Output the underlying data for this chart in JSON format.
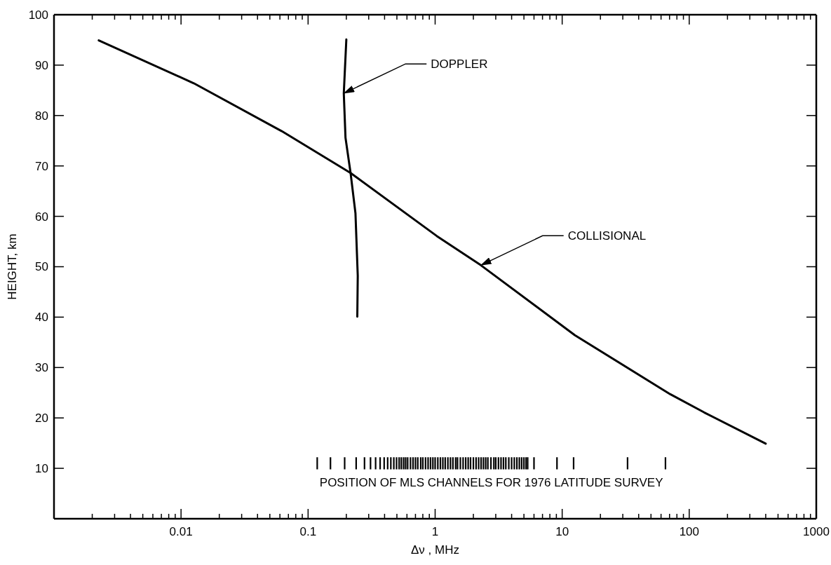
{
  "chart_data": {
    "type": "line",
    "xlabel": "Δν , MHz",
    "ylabel": "HEIGHT, km",
    "log": "x",
    "xlim": [
      0.001,
      1000
    ],
    "ylim": [
      0,
      100
    ],
    "xticks": [
      {
        "value": 0.002,
        "label": null
      },
      {
        "value": 0.003,
        "label": null
      },
      {
        "value": 0.004,
        "label": null
      },
      {
        "value": 0.005,
        "label": null
      },
      {
        "value": 0.006,
        "label": null
      },
      {
        "value": 0.007,
        "label": null
      },
      {
        "value": 0.008,
        "label": null
      },
      {
        "value": 0.009,
        "label": null
      },
      0.01,
      {
        "value": 0.02,
        "label": null
      },
      {
        "value": 0.03,
        "label": null
      },
      {
        "value": 0.04,
        "label": null
      },
      {
        "value": 0.05,
        "label": null
      },
      {
        "value": 0.06,
        "label": null
      },
      {
        "value": 0.07,
        "label": null
      },
      {
        "value": 0.08,
        "label": null
      },
      {
        "value": 0.09,
        "label": null
      },
      0.1,
      {
        "value": 0.2,
        "label": null
      },
      {
        "value": 0.3,
        "label": null
      },
      {
        "value": 0.4,
        "label": null
      },
      {
        "value": 0.5,
        "label": null
      },
      {
        "value": 0.6,
        "label": null
      },
      {
        "value": 0.7,
        "label": null
      },
      {
        "value": 0.8,
        "label": null
      },
      {
        "value": 0.9,
        "label": null
      },
      1,
      {
        "value": 2,
        "label": null
      },
      {
        "value": 3,
        "label": null
      },
      {
        "value": 4,
        "label": null
      },
      {
        "value": 5,
        "label": null
      },
      {
        "value": 6,
        "label": null
      },
      {
        "value": 7,
        "label": null
      },
      {
        "value": 8,
        "label": null
      },
      {
        "value": 9,
        "label": null
      },
      10,
      {
        "value": 20,
        "label": null
      },
      {
        "value": 30,
        "label": null
      },
      {
        "value": 40,
        "label": null
      },
      {
        "value": 50,
        "label": null
      },
      {
        "value": 60,
        "label": null
      },
      {
        "value": 70,
        "label": null
      },
      {
        "value": 80,
        "label": null
      },
      {
        "value": 90,
        "label": null
      },
      100,
      {
        "value": 200,
        "label": null
      },
      {
        "value": 300,
        "label": null
      },
      {
        "value": 400,
        "label": null
      },
      {
        "value": 500,
        "label": null
      },
      {
        "value": 600,
        "label": null
      },
      {
        "value": 700,
        "label": null
      },
      {
        "value": 800,
        "label": null
      },
      {
        "value": 900,
        "label": null
      },
      1000
    ],
    "yticks": [
      10,
      20,
      30,
      40,
      50,
      60,
      70,
      80,
      90,
      100
    ],
    "series": [
      {
        "color": "#000000",
        "x": [
          0.00225,
          0.0126,
          0.062,
          0.216,
          1.03,
          2.29,
          12.6,
          71,
          131,
          400
        ],
        "values": [
          94.9,
          86.4,
          76.9,
          68.6,
          56.1,
          50.3,
          36.4,
          24.7,
          21.1,
          14.9
        ]
      },
      {
        "color": "#000000",
        "x": [
          0.2,
          0.191,
          0.197,
          0.216,
          0.236,
          0.246,
          0.244
        ],
        "values": [
          95.1,
          84.4,
          75.6,
          68.6,
          60.6,
          48.2,
          40.1
        ]
      },
      {
        "type": "bar",
        "color": "#000000",
        "base": [
          9.8,
          9.8,
          9.8,
          9.8,
          9.8,
          9.8,
          9.8,
          9.8,
          9.8,
          9.8,
          9.8,
          9.8,
          9.8,
          9.8,
          9.8,
          9.8,
          9.8,
          9.8,
          9.8,
          9.8,
          9.8,
          9.8,
          9.8,
          9.8,
          9.8,
          9.8,
          9.8,
          9.8,
          9.8,
          9.8,
          9.8,
          9.8,
          9.8,
          9.8,
          9.8,
          9.8,
          9.8,
          9.8,
          9.8,
          9.8,
          9.8,
          9.8,
          9.8,
          9.8,
          9.8,
          9.8,
          9.8,
          9.8,
          9.8,
          9.8,
          9.8,
          9.8,
          9.8,
          9.8,
          9.8,
          9.8,
          9.8,
          9.8,
          9.8,
          9.8,
          9.8,
          9.8,
          9.8,
          9.8,
          9.8,
          9.8,
          9.8,
          9.8,
          9.8,
          9.8,
          9.8
        ],
        "x": [
          0.118,
          0.15,
          0.194,
          0.239,
          0.278,
          0.31,
          0.34,
          0.369,
          0.397,
          0.423,
          0.448,
          0.473,
          0.497,
          0.521,
          0.542,
          0.565,
          0.586,
          0.608,
          0.64,
          0.67,
          0.7,
          0.73,
          0.77,
          0.8,
          0.84,
          0.88,
          0.92,
          0.96,
          1.0,
          1.05,
          1.1,
          1.15,
          1.2,
          1.26,
          1.32,
          1.38,
          1.45,
          1.5,
          1.58,
          1.66,
          1.74,
          1.82,
          1.9,
          2.0,
          2.1,
          2.2,
          2.3,
          2.4,
          2.5,
          2.6,
          2.75,
          2.9,
          3.0,
          3.15,
          3.3,
          3.45,
          3.6,
          3.8,
          4.0,
          4.2,
          4.4,
          4.6,
          4.8,
          5.0,
          5.2,
          5.35,
          6.0,
          9.1,
          12.3,
          32.7,
          65.0
        ],
        "values": [
          2.4,
          2.4,
          2.4,
          2.4,
          2.4,
          2.4,
          2.4,
          2.4,
          2.4,
          2.4,
          2.4,
          2.4,
          2.4,
          2.4,
          2.4,
          2.4,
          2.4,
          2.4,
          2.4,
          2.4,
          2.4,
          2.4,
          2.4,
          2.4,
          2.4,
          2.4,
          2.4,
          2.4,
          2.4,
          2.4,
          2.4,
          2.4,
          2.4,
          2.4,
          2.4,
          2.4,
          2.4,
          2.4,
          2.4,
          2.4,
          2.4,
          2.4,
          2.4,
          2.4,
          2.4,
          2.4,
          2.4,
          2.4,
          2.4,
          2.4,
          2.4,
          2.4,
          2.4,
          2.4,
          2.4,
          2.4,
          2.4,
          2.4,
          2.4,
          2.4,
          2.4,
          2.4,
          2.4,
          2.4,
          2.4,
          2.4,
          2.4,
          2.4,
          2.4,
          2.4,
          2.4
        ]
      }
    ],
    "annotations": [
      {
        "text": "DOPPLER",
        "x": 0.191,
        "y": 84.4
      },
      {
        "text": "COLLISIONAL",
        "x": 2.29,
        "y": 50.3
      },
      "POSITION OF MLS CHANNELS FOR 1976 LATITUDE SURVEY"
    ]
  }
}
